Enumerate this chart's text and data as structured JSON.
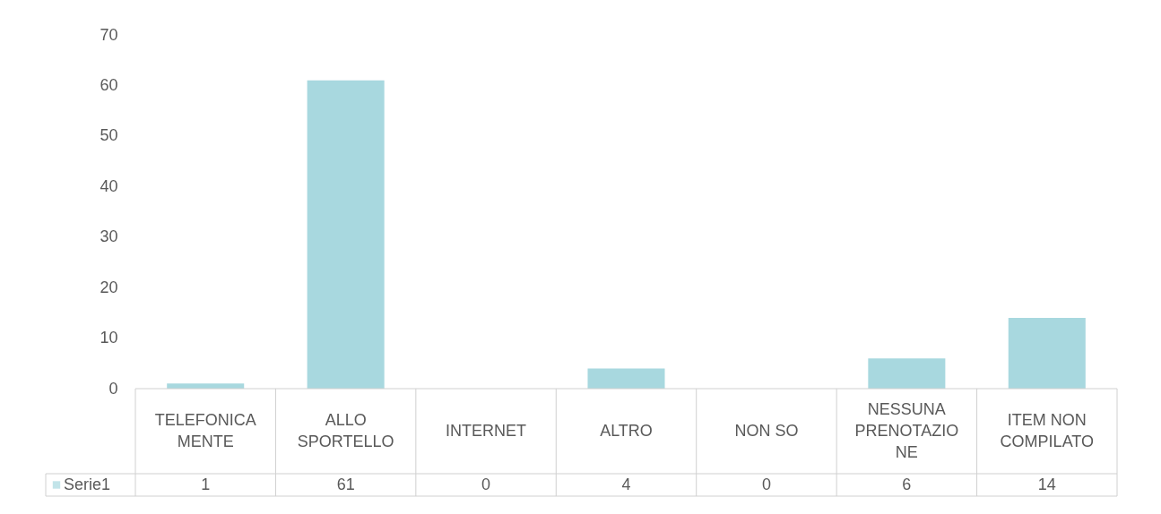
{
  "chart_data": {
    "type": "bar",
    "categories": [
      "TELEFONICAMENTE",
      "ALLO SPORTELLO",
      "INTERNET",
      "ALTRO",
      "NON SO",
      "NESSUNA PRENOTAZIONE",
      "ITEM NON COMPILATO"
    ],
    "series": [
      {
        "name": "Serie1",
        "color": "#a8d8df",
        "values": [
          1,
          61,
          0,
          4,
          0,
          6,
          14
        ]
      }
    ],
    "ylim": [
      0,
      70
    ],
    "yticks": [
      0,
      10,
      20,
      30,
      40,
      50,
      60,
      70
    ],
    "grid": false,
    "legend": "bottom left",
    "data_labels": true
  }
}
